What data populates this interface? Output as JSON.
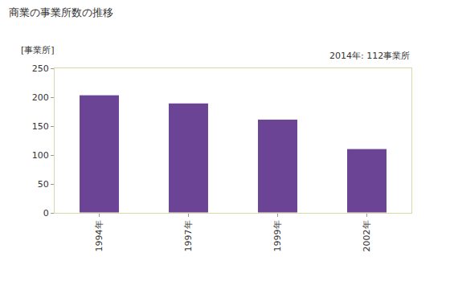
{
  "chart_data": {
    "type": "bar",
    "title": "商業の事業所数の推移",
    "y_label": "[事業所]",
    "annotation": "2014年: 112事業所",
    "categories": [
      "1994年",
      "1997年",
      "1999年",
      "2002年"
    ],
    "values": [
      204,
      190,
      162,
      111
    ],
    "color": "#6b4496",
    "ylim": [
      0,
      250
    ],
    "yticks": [
      0,
      50,
      100,
      150,
      200,
      250
    ],
    "grid": false
  }
}
